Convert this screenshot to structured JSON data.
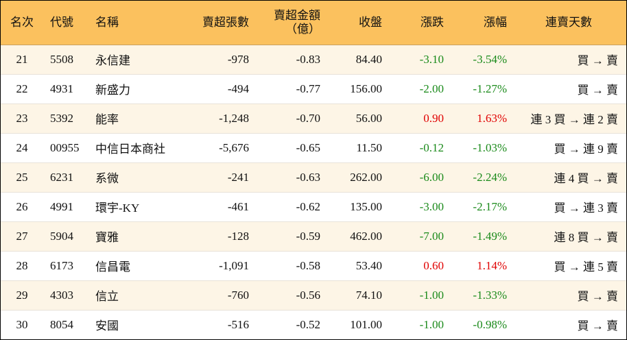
{
  "colors": {
    "header_bg": "#fbc15e",
    "alt_row_bg": "#fdf5e6",
    "up": "#e00000",
    "down": "#1a8a1a"
  },
  "headers": {
    "rank": "名次",
    "code": "代號",
    "name": "名稱",
    "net_sell_lots": "賣超張數",
    "net_sell_amount": "賣超金額",
    "net_sell_amount_unit": "（億）",
    "close": "收盤",
    "change": "漲跌",
    "change_pct": "漲幅",
    "streak": "連賣天數"
  },
  "rows": [
    {
      "rank": "21",
      "code": "5508",
      "name": "永信建",
      "lots": "-978",
      "amount": "-0.83",
      "close": "84.40",
      "change": "-3.10",
      "pct": "-3.54%",
      "dir": "down",
      "streak": "買 → 賣"
    },
    {
      "rank": "22",
      "code": "4931",
      "name": "新盛力",
      "lots": "-494",
      "amount": "-0.77",
      "close": "156.00",
      "change": "-2.00",
      "pct": "-1.27%",
      "dir": "down",
      "streak": "買 → 賣"
    },
    {
      "rank": "23",
      "code": "5392",
      "name": "能率",
      "lots": "-1,248",
      "amount": "-0.70",
      "close": "56.00",
      "change": "0.90",
      "pct": "1.63%",
      "dir": "up",
      "streak": "連 3 買 → 連 2 賣"
    },
    {
      "rank": "24",
      "code": "00955",
      "name": "中信日本商社",
      "lots": "-5,676",
      "amount": "-0.65",
      "close": "11.50",
      "change": "-0.12",
      "pct": "-1.03%",
      "dir": "down",
      "streak": "買 → 連 9 賣"
    },
    {
      "rank": "25",
      "code": "6231",
      "name": "系微",
      "lots": "-241",
      "amount": "-0.63",
      "close": "262.00",
      "change": "-6.00",
      "pct": "-2.24%",
      "dir": "down",
      "streak": "連 4 買 → 賣"
    },
    {
      "rank": "26",
      "code": "4991",
      "name": "環宇-KY",
      "lots": "-461",
      "amount": "-0.62",
      "close": "135.00",
      "change": "-3.00",
      "pct": "-2.17%",
      "dir": "down",
      "streak": "買 → 連 3 賣"
    },
    {
      "rank": "27",
      "code": "5904",
      "name": "寶雅",
      "lots": "-128",
      "amount": "-0.59",
      "close": "462.00",
      "change": "-7.00",
      "pct": "-1.49%",
      "dir": "down",
      "streak": "連 8 買 → 賣"
    },
    {
      "rank": "28",
      "code": "6173",
      "name": "信昌電",
      "lots": "-1,091",
      "amount": "-0.58",
      "close": "53.40",
      "change": "0.60",
      "pct": "1.14%",
      "dir": "up",
      "streak": "買 → 連 5 賣"
    },
    {
      "rank": "29",
      "code": "4303",
      "name": "信立",
      "lots": "-760",
      "amount": "-0.56",
      "close": "74.10",
      "change": "-1.00",
      "pct": "-1.33%",
      "dir": "down",
      "streak": "買 → 賣"
    },
    {
      "rank": "30",
      "code": "8054",
      "name": "安國",
      "lots": "-516",
      "amount": "-0.52",
      "close": "101.00",
      "change": "-1.00",
      "pct": "-0.98%",
      "dir": "down",
      "streak": "買 → 賣"
    }
  ]
}
